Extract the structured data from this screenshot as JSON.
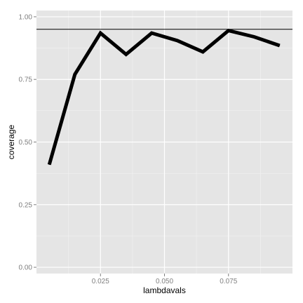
{
  "chart_data": {
    "type": "line",
    "title": "",
    "xlabel": "lambdavals",
    "ylabel": "coverage",
    "xlim": [
      0.0,
      0.1
    ],
    "ylim": [
      -0.025,
      1.025
    ],
    "x_ticks": [
      0.025,
      0.05,
      0.075
    ],
    "x_tick_labels": [
      "0.025",
      "0.050",
      "0.075"
    ],
    "x_minor_ticks": [
      0.0125,
      0.0375,
      0.0625,
      0.0875
    ],
    "y_ticks": [
      0.0,
      0.25,
      0.5,
      0.75,
      1.0
    ],
    "y_tick_labels": [
      "0.00",
      "0.25",
      "0.50",
      "0.75",
      "1.00"
    ],
    "y_minor_ticks": [
      0.125,
      0.375,
      0.625,
      0.875
    ],
    "grid": true,
    "series": [
      {
        "x": [
          0.005,
          0.015,
          0.025,
          0.035,
          0.045,
          0.055,
          0.065,
          0.075,
          0.085,
          0.095
        ],
        "y": [
          0.41,
          0.77,
          0.935,
          0.85,
          0.935,
          0.905,
          0.86,
          0.945,
          0.92,
          0.885
        ]
      }
    ],
    "reference_line": {
      "y": 0.95
    },
    "colors": {
      "panel_background": "#e5e5e5",
      "grid_major": "#ffffff",
      "grid_minor": "#f2f2f2",
      "line": "#000000",
      "reference_line": "#000000",
      "tick_label": "#7f7f7f"
    }
  }
}
